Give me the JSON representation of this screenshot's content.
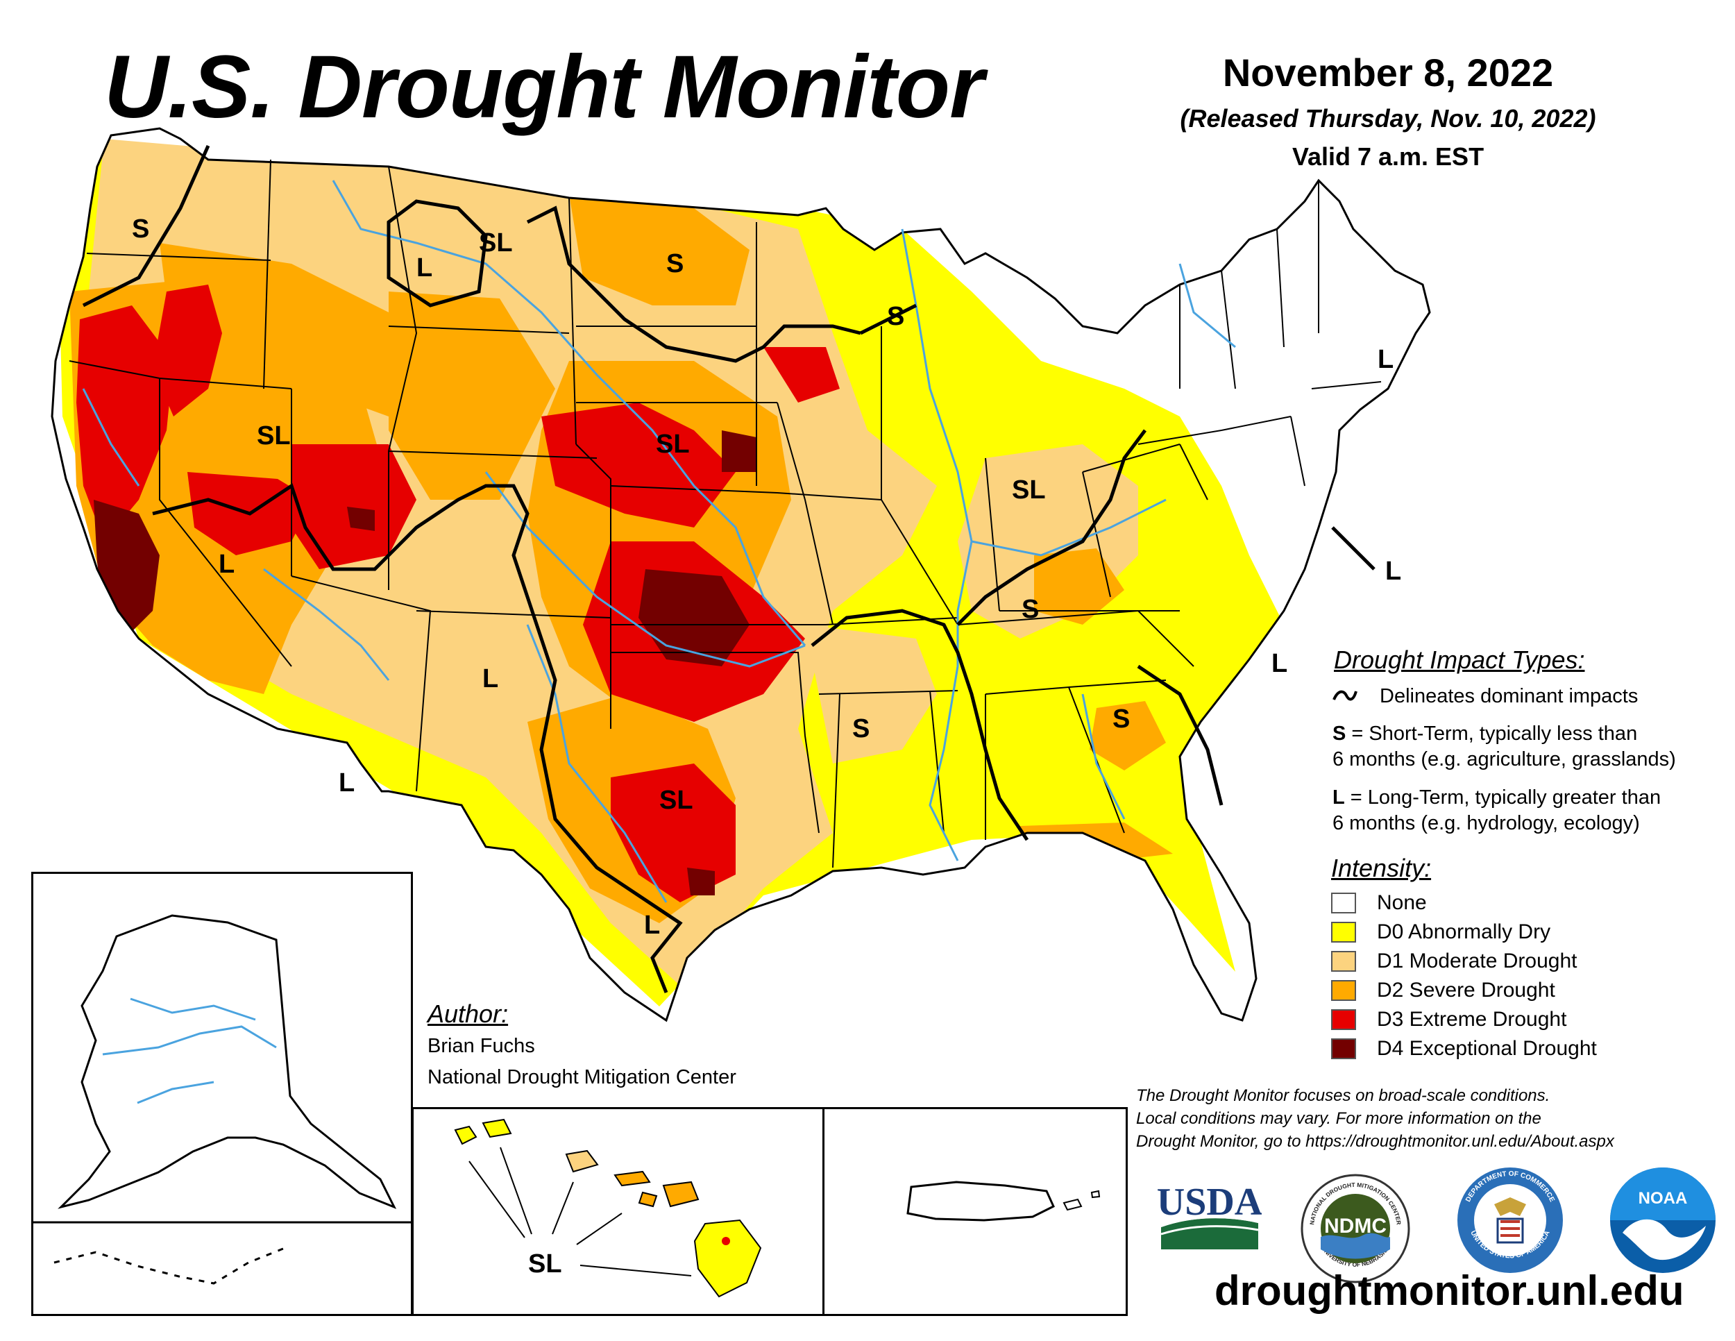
{
  "header": {
    "title": "U.S. Drought Monitor",
    "date": "November 8, 2022",
    "released": "(Released Thursday, Nov. 10, 2022)",
    "valid": "Valid 7 a.m. EST"
  },
  "map_labels": {
    "s1": "S",
    "sl1": "SL",
    "l1": "L",
    "s2": "S",
    "s3": "S",
    "sl2": "SL",
    "sl3": "SL",
    "l2": "L",
    "l3": "L",
    "sl4": "SL",
    "l4": "L",
    "s4": "S",
    "l5": "L",
    "s5": "S",
    "s6": "S",
    "sl5": "SL",
    "l6": "L",
    "l7": "L",
    "l8": "L",
    "hawaii": "SL"
  },
  "impact_types": {
    "heading": "Drought Impact Types:",
    "delineates": "Delineates dominant impacts",
    "short_key": "S",
    "short_line1": " = Short-Term, typically less than",
    "short_line2": "6 months (e.g. agriculture, grasslands)",
    "long_key": "L",
    "long_line1": " = Long-Term, typically greater than",
    "long_line2": "6 months (e.g. hydrology, ecology)"
  },
  "intensity": {
    "heading": "Intensity:",
    "items": [
      {
        "label": "None",
        "color": "#ffffff"
      },
      {
        "label": "D0 Abnormally Dry",
        "color": "#ffff00"
      },
      {
        "label": "D1 Moderate Drought",
        "color": "#fcd37f"
      },
      {
        "label": "D2 Severe Drought",
        "color": "#ffaa00"
      },
      {
        "label": "D3 Extreme Drought",
        "color": "#e60000"
      },
      {
        "label": "D4 Exceptional Drought",
        "color": "#730000"
      }
    ]
  },
  "author": {
    "heading": "Author:",
    "name": "Brian Fuchs",
    "org": "National Drought Mitigation Center"
  },
  "disclaimer": {
    "line1": "The Drought Monitor focuses on broad-scale conditions.",
    "line2": "Local conditions may vary. For more information on the",
    "line3": "Drought Monitor, go to https://droughtmonitor.unl.edu/About.aspx"
  },
  "logos": {
    "usda": "USDA",
    "ndmc": "NDMC",
    "ndmc_ring_top": "NATIONAL DROUGHT MITIGATION CENTER",
    "ndmc_ring_bottom": "UNIVERSITY OF NEBRASKA",
    "commerce_ring_top": "DEPARTMENT OF COMMERCE",
    "commerce_ring_bottom": "UNITED STATES OF AMERICA",
    "noaa": "NOAA"
  },
  "website": "droughtmonitor.unl.edu",
  "colors": {
    "none": "#ffffff",
    "d0": "#ffff00",
    "d1": "#fcd37f",
    "d2": "#ffaa00",
    "d3": "#e60000",
    "d4": "#730000",
    "water": "#4aa3df",
    "border": "#000000"
  }
}
